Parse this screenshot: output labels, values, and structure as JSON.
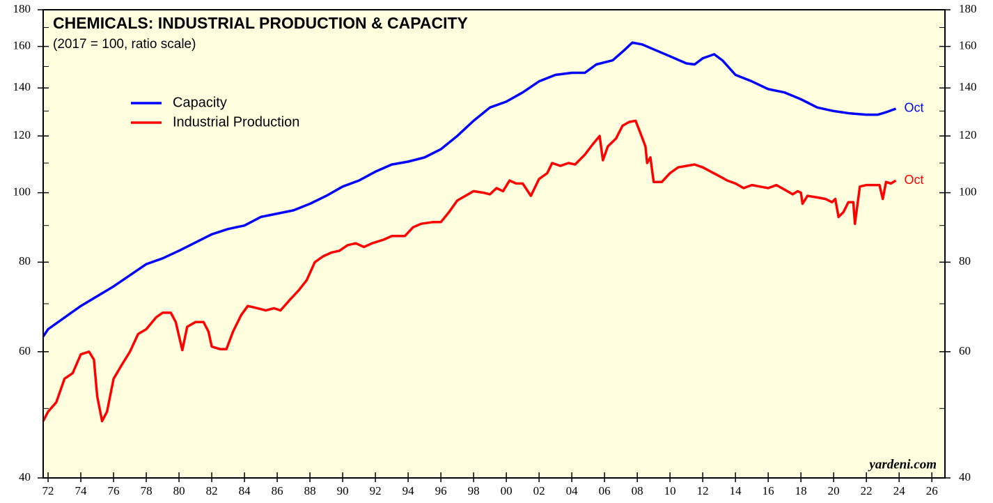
{
  "chart_data": {
    "type": "line",
    "title": "CHEMICALS: INDUSTRIAL PRODUCTION & CAPACITY",
    "subtitle": "(2017 = 100, ratio scale)",
    "source": "yardeni.com",
    "log_scale": true,
    "legend": "upper left",
    "background": "#ffffe0",
    "xlim": [
      1971.7,
      2026.8
    ],
    "xticks": [
      {
        "value": 1972,
        "label": "72"
      },
      {
        "value": 1974,
        "label": "74"
      },
      {
        "value": 1976,
        "label": "76"
      },
      {
        "value": 1978,
        "label": "78"
      },
      {
        "value": 1980,
        "label": "80"
      },
      {
        "value": 1982,
        "label": "82"
      },
      {
        "value": 1984,
        "label": "84"
      },
      {
        "value": 1986,
        "label": "86"
      },
      {
        "value": 1988,
        "label": "88"
      },
      {
        "value": 1990,
        "label": "90"
      },
      {
        "value": 1992,
        "label": "92"
      },
      {
        "value": 1994,
        "label": "94"
      },
      {
        "value": 1996,
        "label": "96"
      },
      {
        "value": 1998,
        "label": "98"
      },
      {
        "value": 2000,
        "label": "00"
      },
      {
        "value": 2002,
        "label": "02"
      },
      {
        "value": 2004,
        "label": "04"
      },
      {
        "value": 2006,
        "label": "06"
      },
      {
        "value": 2008,
        "label": "08"
      },
      {
        "value": 2010,
        "label": "10"
      },
      {
        "value": 2012,
        "label": "12"
      },
      {
        "value": 2014,
        "label": "14"
      },
      {
        "value": 2016,
        "label": "16"
      },
      {
        "value": 2018,
        "label": "18"
      },
      {
        "value": 2020,
        "label": "20"
      },
      {
        "value": 2022,
        "label": "22"
      },
      {
        "value": 2024,
        "label": "24"
      },
      {
        "value": 2026,
        "label": "26"
      }
    ],
    "ylim": [
      40,
      180
    ],
    "yticks": [
      40,
      60,
      80,
      100,
      120,
      140,
      160,
      180
    ],
    "yminor_ticks": [
      50,
      70,
      90,
      110,
      130,
      150,
      170
    ],
    "series": [
      {
        "name": "Capacity",
        "color": "#0000ff",
        "end_label": "Oct",
        "x": [
          1971.7,
          1972,
          1974,
          1976,
          1978,
          1979,
          1980,
          1982,
          1983,
          1984,
          1985,
          1986,
          1987,
          1988,
          1989,
          1990,
          1991,
          1992,
          1993,
          1994,
          1995,
          1996,
          1997,
          1998,
          1999,
          2000,
          2001,
          2002,
          2003,
          2004,
          2004.8,
          2005.5,
          2006.5,
          2007.2,
          2007.7,
          2008.3,
          2009,
          2010,
          2011,
          2011.5,
          2012,
          2012.7,
          2013.2,
          2014,
          2015,
          2016,
          2017,
          2018,
          2019,
          2020,
          2021,
          2022,
          2022.7,
          2023.2,
          2023.8
        ],
        "values": [
          63,
          64.5,
          69.5,
          74,
          79.5,
          81,
          83,
          87.5,
          89,
          90,
          92.5,
          93.5,
          94.5,
          96.5,
          99,
          102,
          104,
          107,
          109.5,
          110.5,
          112,
          115,
          120,
          126,
          131.5,
          134,
          138,
          143,
          146,
          147,
          147,
          151,
          153,
          158,
          162,
          161,
          158.5,
          155,
          151.5,
          151,
          154,
          156,
          153,
          146,
          143,
          139.5,
          138,
          135,
          131.5,
          130,
          129,
          128.5,
          128.5,
          129.5,
          131
        ]
      },
      {
        "name": "Industrial Production",
        "color": "#ff0000",
        "end_label": "Oct",
        "x": [
          1971.7,
          1972,
          1972.5,
          1973,
          1973.5,
          1974,
          1974.5,
          1974.8,
          1975,
          1975.3,
          1975.6,
          1976,
          1976.5,
          1977,
          1977.5,
          1978,
          1978.6,
          1979,
          1979.5,
          1979.8,
          1980.2,
          1980.5,
          1981,
          1981.5,
          1981.8,
          1982,
          1982.5,
          1982.9,
          1983.3,
          1983.8,
          1984.2,
          1984.8,
          1985.3,
          1985.8,
          1986.2,
          1986.8,
          1987.3,
          1987.8,
          1988.3,
          1988.8,
          1989.3,
          1989.8,
          1990.3,
          1990.8,
          1991.3,
          1991.8,
          1992.5,
          1993,
          1993.8,
          1994.3,
          1994.8,
          1995.5,
          1996,
          1996.5,
          1997,
          1997.5,
          1998,
          1998.6,
          1999,
          1999.4,
          1999.8,
          2000.2,
          2000.6,
          2001,
          2001.5,
          2002,
          2002.5,
          2002.8,
          2003.3,
          2003.8,
          2004.2,
          2004.8,
          2005.3,
          2005.7,
          2005.9,
          2006.2,
          2006.7,
          2007.1,
          2007.5,
          2007.9,
          2008.2,
          2008.5,
          2008.6,
          2008.8,
          2009,
          2009.5,
          2010,
          2010.5,
          2011,
          2011.5,
          2012,
          2012.5,
          2013,
          2013.5,
          2014,
          2014.5,
          2015,
          2015.5,
          2016,
          2016.5,
          2017,
          2017.5,
          2017.8,
          2018,
          2018.1,
          2018.4,
          2019,
          2019.5,
          2019.9,
          2020.1,
          2020.3,
          2020.6,
          2020.9,
          2021.2,
          2021.3,
          2021.6,
          2022,
          2022.5,
          2022.8,
          2023,
          2023.2,
          2023.5,
          2023.8
        ],
        "values": [
          48,
          49.5,
          51,
          55,
          56,
          59.5,
          60,
          58.5,
          52,
          48,
          49.5,
          55,
          57.5,
          60,
          63.5,
          64.5,
          67,
          68,
          68,
          66,
          60.3,
          65,
          66,
          66,
          64,
          61,
          60.5,
          60.5,
          64,
          67.5,
          69.5,
          69,
          68.5,
          69,
          68.5,
          71,
          73,
          75.5,
          80,
          81.5,
          82.5,
          83,
          84.5,
          85,
          84,
          85,
          86,
          87,
          87,
          89.5,
          90.5,
          91,
          91,
          94,
          97.5,
          99,
          100.5,
          100,
          99.5,
          101.5,
          100.5,
          104,
          103,
          103,
          99,
          104.5,
          106.5,
          110,
          109,
          110,
          109.5,
          113,
          117,
          120,
          111,
          116,
          119,
          124,
          125.5,
          126,
          121,
          116,
          110,
          112,
          103.5,
          103.5,
          106.5,
          108.5,
          109,
          109.5,
          108.5,
          107,
          105.5,
          104,
          103,
          101.5,
          102.5,
          102,
          101.5,
          102.5,
          101,
          99.5,
          100.5,
          100,
          96.5,
          99,
          98.5,
          98,
          97,
          98,
          92.5,
          94,
          97,
          97,
          90.5,
          102,
          102.5,
          102.5,
          102.5,
          98,
          103.5,
          103,
          104
        ]
      }
    ]
  }
}
